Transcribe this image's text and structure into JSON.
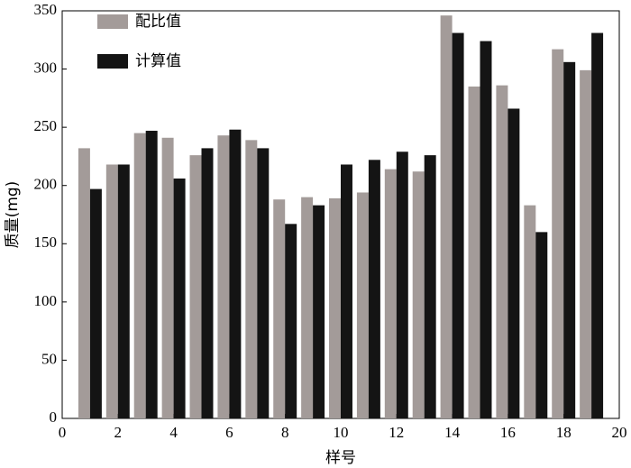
{
  "chart_data": {
    "type": "bar",
    "x": [
      1,
      2,
      3,
      4,
      5,
      6,
      7,
      8,
      9,
      10,
      11,
      12,
      13,
      14,
      15,
      16,
      17,
      18,
      19
    ],
    "series": [
      {
        "name": "配比值",
        "color": "#a39b99",
        "values": [
          232,
          218,
          245,
          241,
          226,
          243,
          239,
          188,
          190,
          189,
          194,
          214,
          212,
          346,
          285,
          286,
          183,
          317,
          299
        ]
      },
      {
        "name": "计算值",
        "color": "#141414",
        "values": [
          197,
          218,
          247,
          206,
          232,
          248,
          232,
          167,
          183,
          218,
          222,
          229,
          226,
          331,
          324,
          266,
          160,
          306,
          331
        ]
      }
    ],
    "xlabel": "样号",
    "ylabel": "质量(mg)",
    "xlim": [
      0,
      20
    ],
    "xticks": [
      0,
      2,
      4,
      6,
      8,
      10,
      12,
      14,
      16,
      18,
      20
    ],
    "ylim": [
      0,
      350
    ],
    "yticks": [
      0,
      50,
      100,
      150,
      200,
      250,
      300,
      350
    ],
    "grid": false,
    "legend": "upper left"
  }
}
